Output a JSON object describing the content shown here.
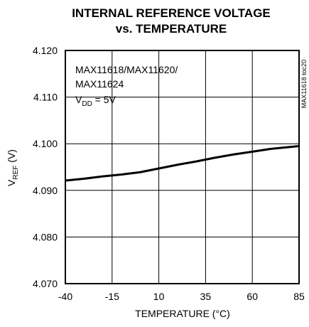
{
  "chart_data": {
    "type": "line",
    "title": "INTERNAL REFERENCE VOLTAGE",
    "subtitle": "vs. TEMPERATURE",
    "xlabel": "TEMPERATURE (°C)",
    "ylabel": {
      "main": "V",
      "sub": "REF",
      "unit": " (V)"
    },
    "xlim": [
      -40,
      85
    ],
    "ylim": [
      4.07,
      4.12
    ],
    "xticks": [
      -40,
      -15,
      10,
      35,
      60,
      85
    ],
    "xtick_labels": [
      "-40",
      "-15",
      "10",
      "35",
      "60",
      "85"
    ],
    "yticks": [
      4.07,
      4.08,
      4.09,
      4.1,
      4.11,
      4.12
    ],
    "ytick_labels": [
      "4.070",
      "4.080",
      "4.090",
      "4.100",
      "4.110",
      "4.120"
    ],
    "grid": true,
    "annotations": {
      "line1": "MAX11618/MAX11620/",
      "line2": "MAX11624",
      "line3_main": "V",
      "line3_sub": "DD",
      "line3_rest": " = 5V"
    },
    "figure_id": "MAX11618 toc20",
    "series": [
      {
        "x": [
          -40,
          -30,
          -20,
          -10,
          0,
          10,
          20,
          30,
          40,
          50,
          60,
          70,
          85
        ],
        "y": [
          4.0921,
          4.0925,
          4.093,
          4.0934,
          4.0939,
          4.0947,
          4.0955,
          4.0962,
          4.097,
          4.0977,
          4.0983,
          4.0989,
          4.0995
        ],
        "color": "#000000"
      }
    ]
  }
}
